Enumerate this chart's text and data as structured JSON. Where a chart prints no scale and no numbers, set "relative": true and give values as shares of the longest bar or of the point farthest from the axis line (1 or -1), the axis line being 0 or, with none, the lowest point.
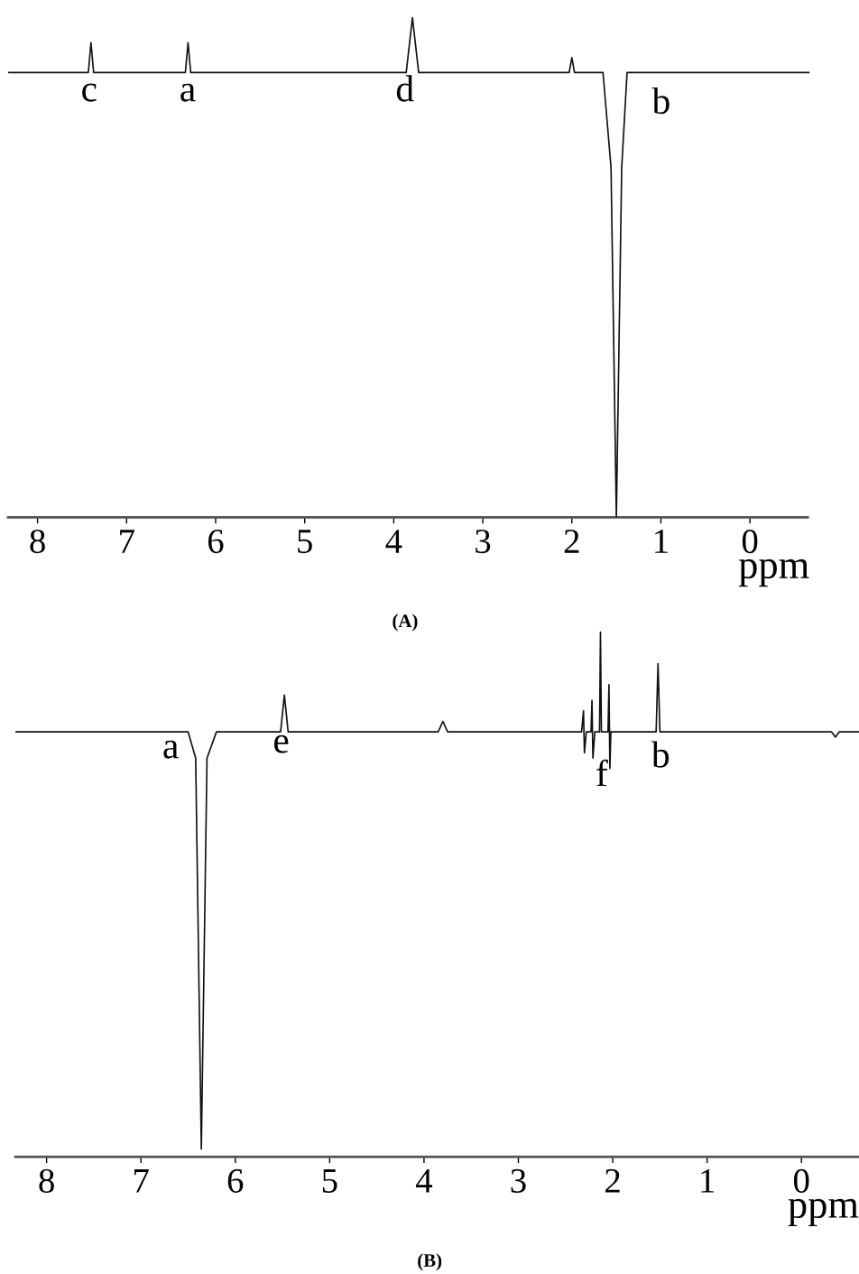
{
  "chart_data": [
    {
      "type": "line",
      "relative": true,
      "xlabel": "ppm",
      "xlim": [
        8.33,
        -0.67
      ],
      "xticks": [
        8,
        7,
        6,
        5,
        4,
        3,
        2,
        1,
        0
      ],
      "grid": false,
      "legend": false,
      "marker": "none",
      "line_style": "solid",
      "series": [
        {
          "color": "#111111",
          "x": [
            8.33,
            7.43,
            7.4,
            7.37,
            6.34,
            6.31,
            6.28,
            3.86,
            3.79,
            3.72,
            2.03,
            2.0,
            1.97,
            1.65,
            1.56,
            1.5,
            1.44,
            1.38,
            -0.67
          ],
          "values": [
            0.89,
            0.89,
            0.95,
            0.89,
            0.89,
            0.95,
            0.89,
            0.89,
            1.0,
            0.89,
            0.89,
            0.92,
            0.89,
            0.89,
            0.7,
            0.0,
            0.7,
            0.89,
            0.89
          ]
        }
      ],
      "annotations": [
        "c",
        "a",
        "d",
        "b",
        "(A)"
      ]
    },
    {
      "type": "line",
      "relative": true,
      "xlabel": "ppm",
      "xlim": [
        8.33,
        -0.61
      ],
      "xticks": [
        8,
        7,
        6,
        5,
        4,
        3,
        2,
        1,
        0
      ],
      "grid": false,
      "legend": false,
      "marker": "none",
      "line_style": "solid",
      "series": [
        {
          "color": "#111111",
          "x": [
            8.33,
            6.5,
            6.42,
            6.36,
            6.3,
            6.2,
            5.52,
            5.48,
            5.44,
            3.85,
            3.8,
            3.75,
            2.33,
            2.31,
            2.3,
            2.28,
            2.23,
            2.22,
            2.21,
            2.19,
            2.14,
            2.13,
            2.12,
            2.05,
            2.04,
            2.03,
            2.02,
            1.54,
            1.52,
            1.5,
            -0.32,
            -0.36,
            -0.4,
            -0.61
          ],
          "values": [
            0.81,
            0.81,
            0.76,
            0.015,
            0.76,
            0.81,
            0.81,
            0.88,
            0.81,
            0.81,
            0.83,
            0.81,
            0.81,
            0.85,
            0.77,
            0.81,
            0.81,
            0.87,
            0.76,
            0.81,
            0.81,
            1.0,
            0.81,
            0.81,
            0.9,
            0.74,
            0.81,
            0.81,
            0.94,
            0.81,
            0.81,
            0.8,
            0.81,
            0.81
          ]
        }
      ],
      "annotations": [
        "a",
        "e",
        "f",
        "b",
        "(B)"
      ]
    }
  ]
}
